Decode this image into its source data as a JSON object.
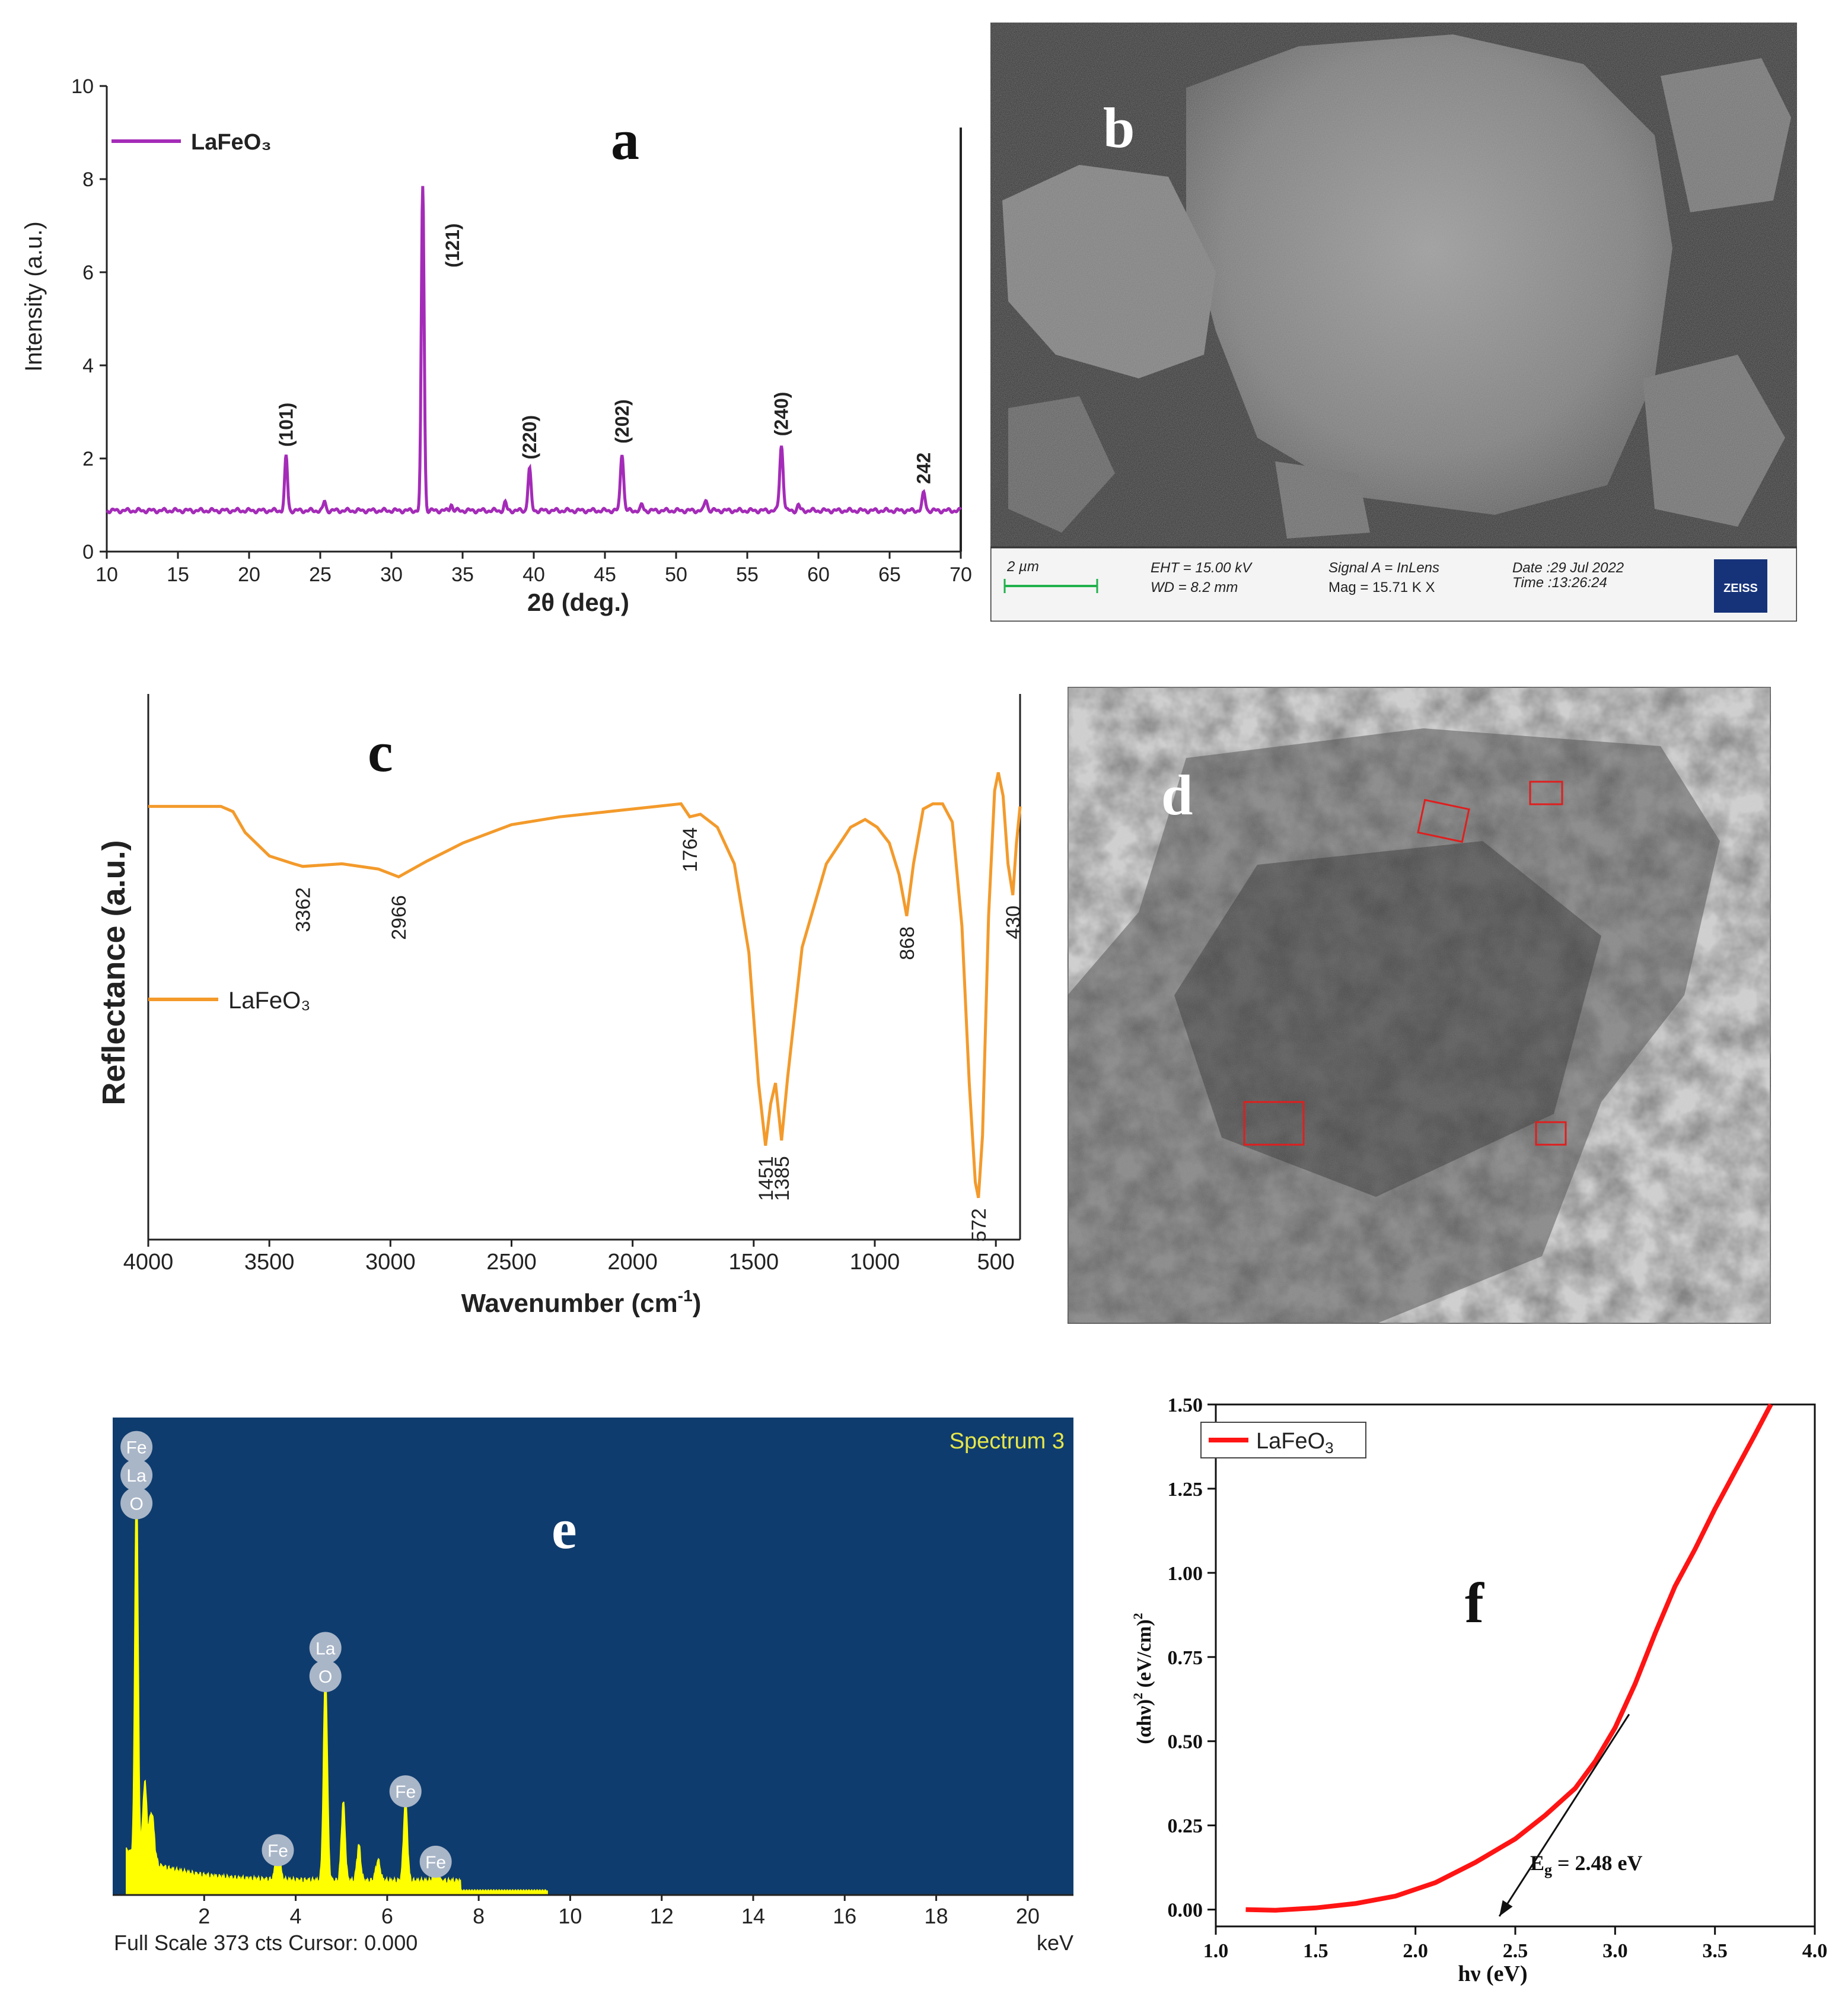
{
  "panels": {
    "a": {
      "letter": "a",
      "chart_data": {
        "type": "line",
        "xlabel": "2θ (deg.)",
        "ylabel": "Intensity (a.u.)",
        "xlim": [
          10,
          70
        ],
        "ylim": [
          0,
          10
        ],
        "xticks": [
          10,
          15,
          20,
          25,
          30,
          35,
          40,
          45,
          50,
          55,
          60,
          65,
          70
        ],
        "yticks": [
          0,
          2,
          4,
          6,
          8,
          10
        ],
        "legend": "top-left",
        "series": [
          {
            "name": "LaFeO₃",
            "color": "#a42bb8",
            "baseline": 0.88,
            "peaks": [
              {
                "x": 22.6,
                "y": 2.05,
                "w": 0.14
              },
              {
                "x": 25.3,
                "y": 1.08,
                "w": 0.12
              },
              {
                "x": 32.2,
                "y": 7.85,
                "w": 0.14
              },
              {
                "x": 34.2,
                "y": 1.02,
                "w": 0.12
              },
              {
                "x": 38.0,
                "y": 1.05,
                "w": 0.12
              },
              {
                "x": 39.7,
                "y": 1.78,
                "w": 0.15
              },
              {
                "x": 46.2,
                "y": 2.12,
                "w": 0.16
              },
              {
                "x": 47.6,
                "y": 1.0,
                "w": 0.12
              },
              {
                "x": 52.1,
                "y": 1.12,
                "w": 0.14
              },
              {
                "x": 57.4,
                "y": 2.28,
                "w": 0.17
              },
              {
                "x": 58.6,
                "y": 1.0,
                "w": 0.12
              },
              {
                "x": 67.4,
                "y": 1.25,
                "w": 0.16
              }
            ]
          }
        ],
        "annotations": [
          {
            "text": "(101)",
            "x": 22.6,
            "y": 2.25
          },
          {
            "text": "(121)",
            "x": 34.3,
            "y": 6.1
          },
          {
            "text": "(220)",
            "x": 39.7,
            "y": 1.98
          },
          {
            "text": "(202)",
            "x": 46.2,
            "y": 2.32
          },
          {
            "text": "(240)",
            "x": 57.4,
            "y": 2.48
          },
          {
            "text": "242",
            "x": 67.4,
            "y": 1.45
          }
        ]
      }
    },
    "b": {
      "letter": "b",
      "info": {
        "scale": "2 µm",
        "eht": "EHT = 15.00 kV",
        "wd": "WD =  8.2 mm",
        "signal": "Signal A = InLens",
        "mag": "Mag =  15.71 K X",
        "date": "Date :29 Jul 2022",
        "time": "Time :13:26:24",
        "logo": "ZEISS"
      }
    },
    "c": {
      "letter": "c",
      "chart_data": {
        "type": "line",
        "xlabel": "Wavenumber (cm",
        "xlabel_sup": "-1",
        "xlabel_end": ")",
        "ylabel": "Reflectance (a.u.)",
        "xlim": [
          4000,
          400
        ],
        "ylim": [
          0,
          1
        ],
        "xticks": [
          4000,
          3500,
          3000,
          2500,
          2000,
          1500,
          1000,
          500
        ],
        "legend": "left",
        "series": [
          {
            "name": "LaFeO₃",
            "color": "#f39a2b",
            "points": [
              [
                4000,
                0.83
              ],
              [
                3800,
                0.83
              ],
              [
                3700,
                0.83
              ],
              [
                3650,
                0.82
              ],
              [
                3600,
                0.78
              ],
              [
                3500,
                0.735
              ],
              [
                3400,
                0.72
              ],
              [
                3362,
                0.715
              ],
              [
                3200,
                0.72
              ],
              [
                3050,
                0.71
              ],
              [
                2966,
                0.695
              ],
              [
                2850,
                0.725
              ],
              [
                2700,
                0.76
              ],
              [
                2500,
                0.795
              ],
              [
                2300,
                0.81
              ],
              [
                2100,
                0.82
              ],
              [
                1900,
                0.83
              ],
              [
                1800,
                0.835
              ],
              [
                1764,
                0.81
              ],
              [
                1720,
                0.815
              ],
              [
                1650,
                0.79
              ],
              [
                1580,
                0.72
              ],
              [
                1520,
                0.55
              ],
              [
                1480,
                0.3
              ],
              [
                1451,
                0.18
              ],
              [
                1430,
                0.26
              ],
              [
                1410,
                0.3
              ],
              [
                1385,
                0.19
              ],
              [
                1360,
                0.31
              ],
              [
                1300,
                0.56
              ],
              [
                1200,
                0.72
              ],
              [
                1100,
                0.79
              ],
              [
                1040,
                0.805
              ],
              [
                990,
                0.79
              ],
              [
                940,
                0.76
              ],
              [
                900,
                0.7
              ],
              [
                868,
                0.62
              ],
              [
                840,
                0.72
              ],
              [
                800,
                0.825
              ],
              [
                760,
                0.835
              ],
              [
                720,
                0.835
              ],
              [
                680,
                0.8
              ],
              [
                640,
                0.6
              ],
              [
                610,
                0.3
              ],
              [
                585,
                0.11
              ],
              [
                572,
                0.08
              ],
              [
                555,
                0.2
              ],
              [
                530,
                0.62
              ],
              [
                505,
                0.86
              ],
              [
                490,
                0.895
              ],
              [
                470,
                0.85
              ],
              [
                450,
                0.72
              ],
              [
                430,
                0.66
              ],
              [
                415,
                0.76
              ],
              [
                400,
                0.83
              ]
            ]
          }
        ],
        "annotations": [
          {
            "text": "3362",
            "x": 3362,
            "y": 0.675
          },
          {
            "text": "2966",
            "x": 2966,
            "y": 0.66
          },
          {
            "text": "1764",
            "x": 1764,
            "y": 0.79
          },
          {
            "text": "1451",
            "x": 1451,
            "y": 0.16
          },
          {
            "text": "1385",
            "x": 1385,
            "y": 0.16
          },
          {
            "text": "868",
            "x": 868,
            "y": 0.6
          },
          {
            "text": "572",
            "x": 572,
            "y": 0.06
          },
          {
            "text": "430",
            "x": 430,
            "y": 0.64
          }
        ]
      }
    },
    "d": {
      "letter": "d"
    },
    "e": {
      "letter": "e",
      "chart_data": {
        "type": "bar",
        "title": "Spectrum 3",
        "xlabel": "keV",
        "footer": "Full Scale 373 cts Cursor: 0.000",
        "xlim": [
          0,
          21
        ],
        "xticks": [
          2,
          4,
          6,
          8,
          10,
          12,
          14,
          16,
          18,
          20
        ],
        "ylim": [
          0,
          373
        ],
        "bg_color": "#0f3c6e",
        "series_color": "#ffff00",
        "peaks": [
          {
            "x": 0.52,
            "y": 300,
            "w": 0.05
          },
          {
            "x": 0.7,
            "y": 60,
            "w": 0.06
          },
          {
            "x": 0.85,
            "y": 40,
            "w": 0.08
          },
          {
            "x": 3.61,
            "y": 25,
            "w": 0.07
          },
          {
            "x": 4.65,
            "y": 165,
            "w": 0.06
          },
          {
            "x": 5.04,
            "y": 62,
            "w": 0.06
          },
          {
            "x": 5.38,
            "y": 28,
            "w": 0.06
          },
          {
            "x": 5.8,
            "y": 16,
            "w": 0.07
          },
          {
            "x": 6.4,
            "y": 65,
            "w": 0.06
          },
          {
            "x": 7.06,
            "y": 18,
            "w": 0.06
          }
        ],
        "labels": [
          {
            "text": "Fe",
            "x": 0.52,
            "y": 350
          },
          {
            "text": "La",
            "x": 0.52,
            "y": 328
          },
          {
            "text": "O",
            "x": 0.52,
            "y": 306
          },
          {
            "text": "La",
            "x": 4.65,
            "y": 193
          },
          {
            "text": "O",
            "x": 4.65,
            "y": 171
          },
          {
            "text": "Fe",
            "x": 3.61,
            "y": 35
          },
          {
            "text": "Fe",
            "x": 6.4,
            "y": 81
          },
          {
            "text": "Fe",
            "x": 7.06,
            "y": 26
          }
        ]
      }
    },
    "f": {
      "letter": "f",
      "chart_data": {
        "type": "line",
        "xlabel": "hν (eV)",
        "ylabel_base": "(αhν)",
        "ylabel_sup": "2",
        "ylabel_mid": " (eV/cm)",
        "ylabel_sup2": "2",
        "xlim": [
          1.0,
          4.0
        ],
        "ylim": [
          -0.05,
          1.5
        ],
        "xticks": [
          1.0,
          1.5,
          2.0,
          2.5,
          3.0,
          3.5,
          4.0
        ],
        "xtick_labels": [
          "1.0",
          "1.5",
          "2.0",
          "2.5",
          "3.0",
          "3.5",
          "4.0"
        ],
        "yticks": [
          0,
          0.25,
          0.5,
          0.75,
          1.0,
          1.25,
          1.5
        ],
        "ytick_labels": [
          "0.00",
          "0.25",
          "0.50",
          "0.75",
          "1.00",
          "1.25",
          "1.50"
        ],
        "legend": "top-left",
        "series": [
          {
            "name": "LaFeO",
            "name_sub": "3",
            "color": "#ff1414",
            "points": [
              [
                1.15,
                0.0
              ],
              [
                1.3,
                -0.002
              ],
              [
                1.5,
                0.005
              ],
              [
                1.7,
                0.018
              ],
              [
                1.9,
                0.04
              ],
              [
                2.1,
                0.08
              ],
              [
                2.3,
                0.14
              ],
              [
                2.5,
                0.21
              ],
              [
                2.65,
                0.28
              ],
              [
                2.8,
                0.36
              ],
              [
                2.9,
                0.44
              ],
              [
                3.0,
                0.54
              ],
              [
                3.1,
                0.67
              ],
              [
                3.2,
                0.82
              ],
              [
                3.3,
                0.96
              ],
              [
                3.4,
                1.07
              ],
              [
                3.5,
                1.19
              ],
              [
                3.6,
                1.3
              ],
              [
                3.7,
                1.41
              ],
              [
                3.78,
                1.5
              ]
            ]
          }
        ],
        "tangent": {
          "x1": 3.07,
          "y1": 0.58,
          "x2": 2.42,
          "y2": -0.02
        },
        "annotation_base": "E",
        "annotation_sub": "g",
        "annotation_tail": " = 2.48 eV"
      }
    }
  }
}
